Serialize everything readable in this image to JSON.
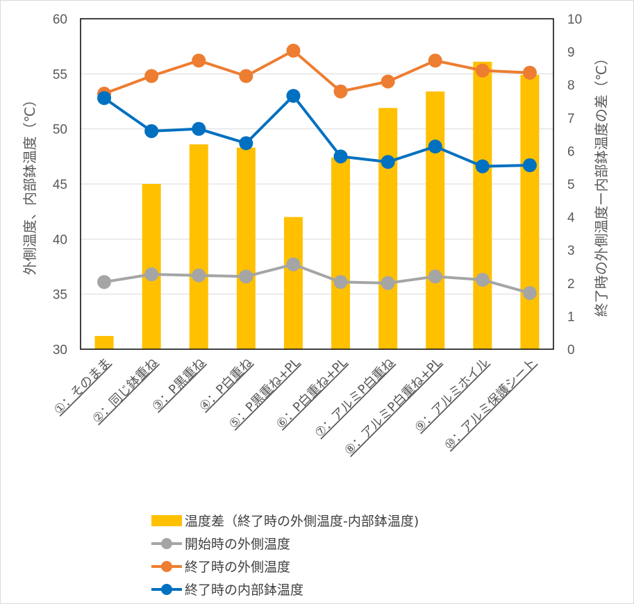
{
  "chart_data": {
    "type": "bar",
    "categories": [
      "①：そのまま",
      "②：同じ鉢重ね",
      "③：P黒重ね",
      "④：P白重ね",
      "⑤：P黒重ね+PL",
      "⑥：P白重ね+PL",
      "⑦：アルミP白重ね",
      "⑧：アルミP白重ね+PL",
      "⑨：アルミホイル",
      "⑩：アルミ保護シート"
    ],
    "left_axis": {
      "label": "外側温度、内部鉢温度（℃）",
      "ylim": [
        30,
        60
      ],
      "ticks": [
        30,
        35,
        40,
        45,
        50,
        55,
        60
      ]
    },
    "right_axis": {
      "label": "終了時の外側温度ー内部鉢温度の差（℃）",
      "ylim": [
        0,
        10
      ],
      "ticks": [
        0,
        1,
        2,
        3,
        4,
        5,
        6,
        7,
        8,
        9,
        10
      ]
    },
    "series": [
      {
        "name": "温度差（終了時の外側温度-内部鉢温度)",
        "kind": "bar",
        "axis": "right",
        "color": "#FFC000",
        "values": [
          0.4,
          5.0,
          6.2,
          6.1,
          4.0,
          5.8,
          7.3,
          7.8,
          8.7,
          8.3
        ]
      },
      {
        "name": "開始時の外側温度",
        "kind": "line",
        "axis": "left",
        "color": "#A5A5A5",
        "values": [
          36.1,
          36.8,
          36.7,
          36.6,
          37.7,
          36.1,
          36.0,
          36.6,
          36.3,
          35.1
        ]
      },
      {
        "name": "終了時の外側温度",
        "kind": "line",
        "axis": "left",
        "color": "#ED7D31",
        "values": [
          53.2,
          54.8,
          56.2,
          54.8,
          57.1,
          53.4,
          54.3,
          56.2,
          55.3,
          55.1
        ]
      },
      {
        "name": "終了時の内部鉢温度",
        "kind": "line",
        "axis": "left",
        "color": "#0070C0",
        "values": [
          52.8,
          49.8,
          50.0,
          48.7,
          53.0,
          47.5,
          47.0,
          48.4,
          46.6,
          46.7
        ]
      }
    ],
    "legend_position": "bottom",
    "grid": true
  }
}
